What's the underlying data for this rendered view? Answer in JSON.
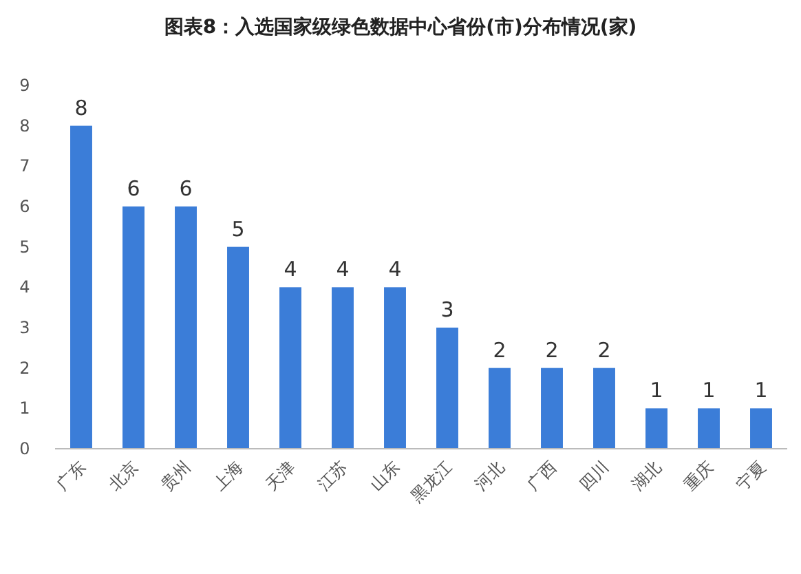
{
  "chart_data": {
    "type": "bar",
    "title": "图表8：入选国家级绿色数据中心省份(市)分布情况(家)",
    "categories": [
      "广东",
      "北京",
      "贵州",
      "上海",
      "天津",
      "江苏",
      "山东",
      "黑龙江",
      "河北",
      "广西",
      "四川",
      "湖北",
      "重庆",
      "宁夏"
    ],
    "values": [
      8,
      6,
      6,
      5,
      4,
      4,
      4,
      3,
      2,
      2,
      2,
      1,
      1,
      1
    ],
    "color": "#3b7dd8",
    "ylim": [
      0,
      9
    ],
    "yticks": [
      0,
      1,
      2,
      3,
      4,
      5,
      6,
      7,
      8,
      9
    ],
    "data_labels": true
  }
}
